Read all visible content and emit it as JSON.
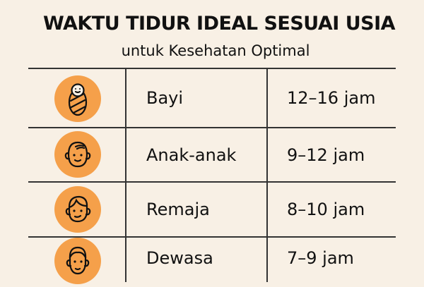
{
  "title": "WAKTU TIDUR IDEAL SESUAI USIA",
  "subtitle": "untuk Kesehatan Optimal",
  "colors": {
    "accent": "#f5a04a",
    "background": "#f8f0e5"
  },
  "rows": [
    {
      "icon": "swaddled-baby-icon",
      "label": "Bayi",
      "value": "12–16 jam"
    },
    {
      "icon": "child-face-icon",
      "label": "Anak-anak",
      "value": "9–12 jam"
    },
    {
      "icon": "teen-face-icon",
      "label": "Remaja",
      "value": "8–10 jam"
    },
    {
      "icon": "adult-face-icon",
      "label": "Dewasa",
      "value": "7–9 jam"
    }
  ]
}
